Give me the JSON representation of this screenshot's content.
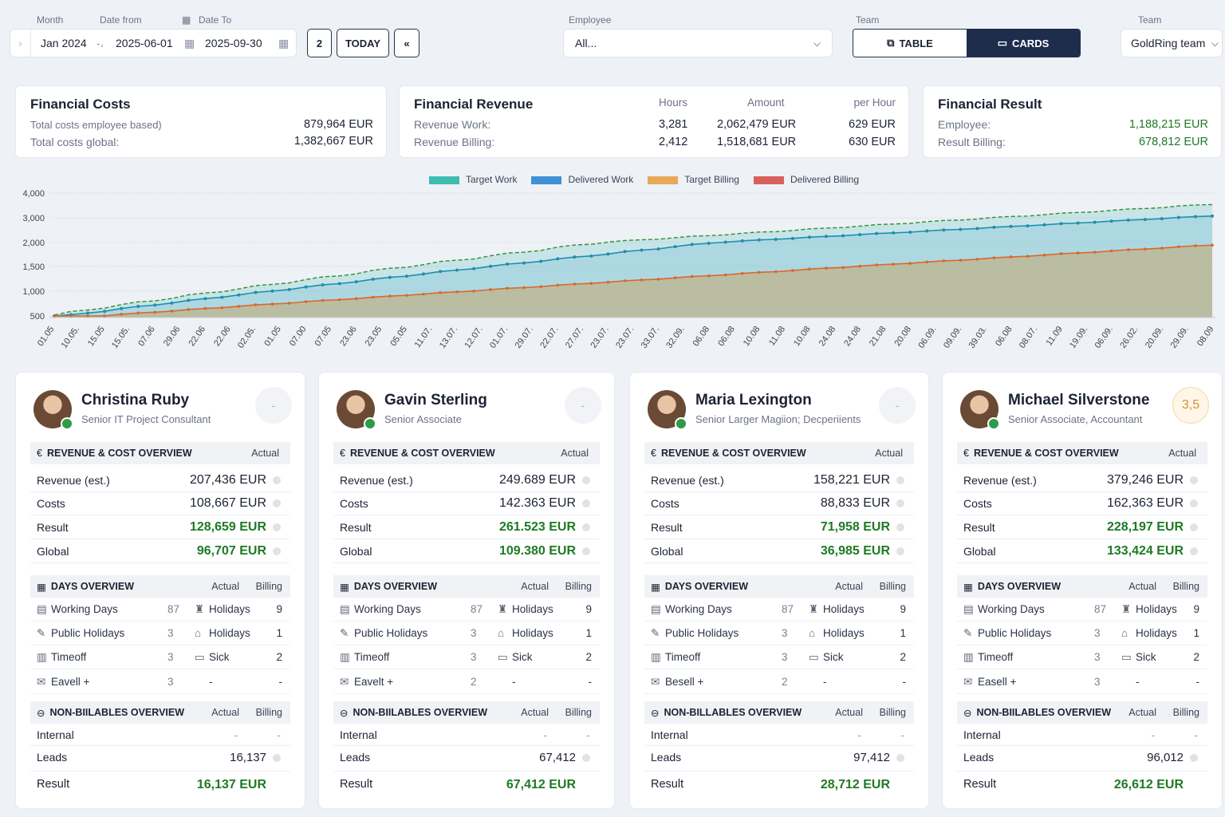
{
  "filters": {
    "month_label": "Month",
    "month_value": "Jan 2024",
    "date_from_label": "Date from",
    "date_from_value": "2025-06-01",
    "date_to_label": "Date To",
    "date_to_value": "2025-09-30",
    "step_value": "2",
    "today_label": "TODAY",
    "reset_label": "«",
    "employee_label": "Employee",
    "employee_value": "All...",
    "view_label": "Team",
    "table_label": "TABLE",
    "cards_label": "CARDS",
    "team_label": "Team",
    "team_value": "GoldRing team"
  },
  "summary": {
    "costs": {
      "title": "Financial Costs",
      "row1_label": "Total costs employee based)",
      "row1_value": "879,964 EUR",
      "row2_label": "Total costs global:",
      "row2_value": "1,382,667 EUR"
    },
    "revenue": {
      "title": "Financial Revenue",
      "col_hours": "Hours",
      "col_amount": "Amount",
      "col_per_hour": "per Hour",
      "row1_label": "Revenue Work:",
      "row1_hours": "3,281",
      "row1_amount": "2,062,479 EUR",
      "row1_per_hour": "629 EUR",
      "row2_label": "Revenue Billing:",
      "row2_hours": "2,412",
      "row2_amount": "1,518,681 EUR",
      "row2_per_hour": "630 EUR"
    },
    "result": {
      "title": "Financial Result",
      "row1_label": "Employee:",
      "row1_value": "1,188,215 EUR",
      "row2_label": "Result Billing:",
      "row2_value": "678,812 EUR"
    }
  },
  "chart_data": {
    "type": "area",
    "legend": [
      "Target Work",
      "Delivered Work",
      "Target Billing",
      "Delivered Billing"
    ],
    "colors": {
      "target_work": "#3fbcb0",
      "delivered_work": "#3f8fd8",
      "target_billing": "#e8a85a",
      "delivered_billing": "#d9605a"
    },
    "y_ticks": [
      "4,000",
      "3,000",
      "2,000",
      "1,500",
      "1,000",
      "500"
    ],
    "x_ticks": [
      "01.05",
      "10.05.",
      "15.05",
      "15.05.",
      "07.06",
      "29.06",
      "22.06",
      "22.06",
      "02.05.",
      "01.05",
      "07.00",
      "07.05",
      "23.06",
      "23.05",
      "05.05",
      "11.07.",
      "13.07.",
      "12.07.",
      "01.07.",
      "29.07.",
      "22.07.",
      "27.07.",
      "23.07.",
      "23.07.",
      "33.07.",
      "32.09.",
      "06.08",
      "06.08",
      "10.08",
      "11.08",
      "10.08",
      "24.08",
      "24.08",
      "21.08",
      "20.08",
      "06.09.",
      "09.09.",
      "39.03.",
      "06.08",
      "08.07.",
      "11.09",
      "19.09.",
      "06.09.",
      "26.02.",
      "20.09.",
      "29.09.",
      "08.09"
    ],
    "series": [
      {
        "name": "Target Work",
        "start": 520,
        "end": 3550
      },
      {
        "name": "Delivered Work",
        "start": 470,
        "end": 3080
      },
      {
        "name": "Delivered Billing",
        "start": 430,
        "end": 1950
      }
    ]
  },
  "employees": [
    {
      "name": "Christina Ruby",
      "role": "Senior IT Project Consultant",
      "badge": "-",
      "hl": false,
      "rev_head": "REVENUE & COST OVERVIEW",
      "rev_col": "Actual",
      "revenue_label": "Revenue (est.)",
      "revenue": "207,436 EUR",
      "costs_label": "Costs",
      "costs": "108,667 EUR",
      "result_label": "Result",
      "result": "128,659 EUR",
      "global_label": "Global",
      "global": "96,707 EUR",
      "days_head": "DAYS OVERVIEW",
      "days_actual": "Actual",
      "days_billing": "Billing",
      "d1a": "Working Days",
      "d1b": "87",
      "d1c": "Holidays",
      "d1d": "9",
      "d2a": "Public Holidays",
      "d2b": "3",
      "d2c": "Holidays",
      "d2d": "1",
      "d3a": "Timeoff",
      "d3b": "3",
      "d3c": "Sick",
      "d3d": "2",
      "d4a": "Eavell +",
      "d4b": "3",
      "d4c": "-",
      "d4d": "-",
      "nb_head": "NON-BIILABLES OVERVIEW",
      "nb_actual": "Actual",
      "nb_billing": "Billing",
      "internal_label": "Internal",
      "internal_a": "-",
      "internal_b": "-",
      "leads_label": "Leads",
      "leads": "16,137",
      "res_label": "Result",
      "res": "16,137 EUR"
    },
    {
      "name": "Gavin Sterling",
      "role": "Senior Associate",
      "badge": "-",
      "hl": false,
      "rev_head": "REVENUE & COST OVERVIEW",
      "rev_col": "Actual",
      "revenue_label": "Revenue (est.)",
      "revenue": "249.689 EUR",
      "costs_label": "Costs",
      "costs": "142.363 EUR",
      "result_label": "Result",
      "result": "261.523 EUR",
      "global_label": "Global",
      "global": "109.380 EUR",
      "days_head": "DAYS OVERVIEW",
      "days_actual": "Actual",
      "days_billing": "Billing",
      "d1a": "Working Days",
      "d1b": "87",
      "d1c": "Holidays",
      "d1d": "9",
      "d2a": "Public Holidays",
      "d2b": "3",
      "d2c": "Holidays",
      "d2d": "1",
      "d3a": "Timeoff",
      "d3b": "3",
      "d3c": "Sick",
      "d3d": "2",
      "d4a": "Eavelt +",
      "d4b": "2",
      "d4c": "-",
      "d4d": "-",
      "nb_head": "NON-BIILABLES OVERVIEW",
      "nb_actual": "Actual",
      "nb_billing": "Billing",
      "internal_label": "Internal",
      "internal_a": "-",
      "internal_b": "-",
      "leads_label": "Leads",
      "leads": "67,412",
      "res_label": "Result",
      "res": "67,412 EUR"
    },
    {
      "name": "Maria Lexington",
      "role": "Senior Larger Magiion; Decperiients",
      "badge": "-",
      "hl": false,
      "rev_head": "REVENUE & COST OVERVIEW",
      "rev_col": "Actual",
      "revenue_label": "Revenue (est.)",
      "revenue": "158,221 EUR",
      "costs_label": "Costs",
      "costs": "88,833 EUR",
      "result_label": "Result",
      "result": "71,958 EUR",
      "global_label": "Global",
      "global": "36,985 EUR",
      "days_head": "DAYS OVERVIEW",
      "days_actual": "Actual",
      "days_billing": "Billing",
      "d1a": "Working Days",
      "d1b": "87",
      "d1c": "Holidays",
      "d1d": "9",
      "d2a": "Public Holidays",
      "d2b": "3",
      "d2c": "Holidays",
      "d2d": "1",
      "d3a": "Timeoff",
      "d3b": "3",
      "d3c": "Sick",
      "d3d": "2",
      "d4a": "Besell +",
      "d4b": "2",
      "d4c": "-",
      "d4d": "-",
      "nb_head": "NON-BILLABLES OVERVIEW",
      "nb_actual": "Actual",
      "nb_billing": "Billing",
      "internal_label": "Internal",
      "internal_a": "-",
      "internal_b": "-",
      "leads_label": "Leads",
      "leads": "97,412",
      "res_label": "Result",
      "res": "28,712 EUR"
    },
    {
      "name": "Michael Silverstone",
      "role": "Senior Associate, Accountant",
      "badge": "3,5",
      "hl": true,
      "rev_head": "REVENUE & COST OVERVIEW",
      "rev_col": "Actual",
      "revenue_label": "Revenue (est.)",
      "revenue": "379,246 EUR",
      "costs_label": "Costs",
      "costs": "162,363 EUR",
      "result_label": "Result",
      "result": "228,197 EUR",
      "global_label": "Global",
      "global": "133,424 EUR",
      "days_head": "DAYS OVERVIEW",
      "days_actual": "Actual",
      "days_billing": "Billing",
      "d1a": "Working Days",
      "d1b": "87",
      "d1c": "Holidays",
      "d1d": "9",
      "d2a": "Public Holidays",
      "d2b": "3",
      "d2c": "Holidays",
      "d2d": "1",
      "d3a": "Timeoff",
      "d3b": "3",
      "d3c": "Sick",
      "d3d": "2",
      "d4a": "Easell +",
      "d4b": "3",
      "d4c": "-",
      "d4d": "-",
      "nb_head": "NON-BIILABLES OVERVIEW",
      "nb_actual": "Actual",
      "nb_billing": "Billing",
      "internal_label": "Internal",
      "internal_a": "-",
      "internal_b": "-",
      "leads_label": "Leads",
      "leads": "96,012",
      "res_label": "Result",
      "res": "26,612 EUR"
    }
  ]
}
